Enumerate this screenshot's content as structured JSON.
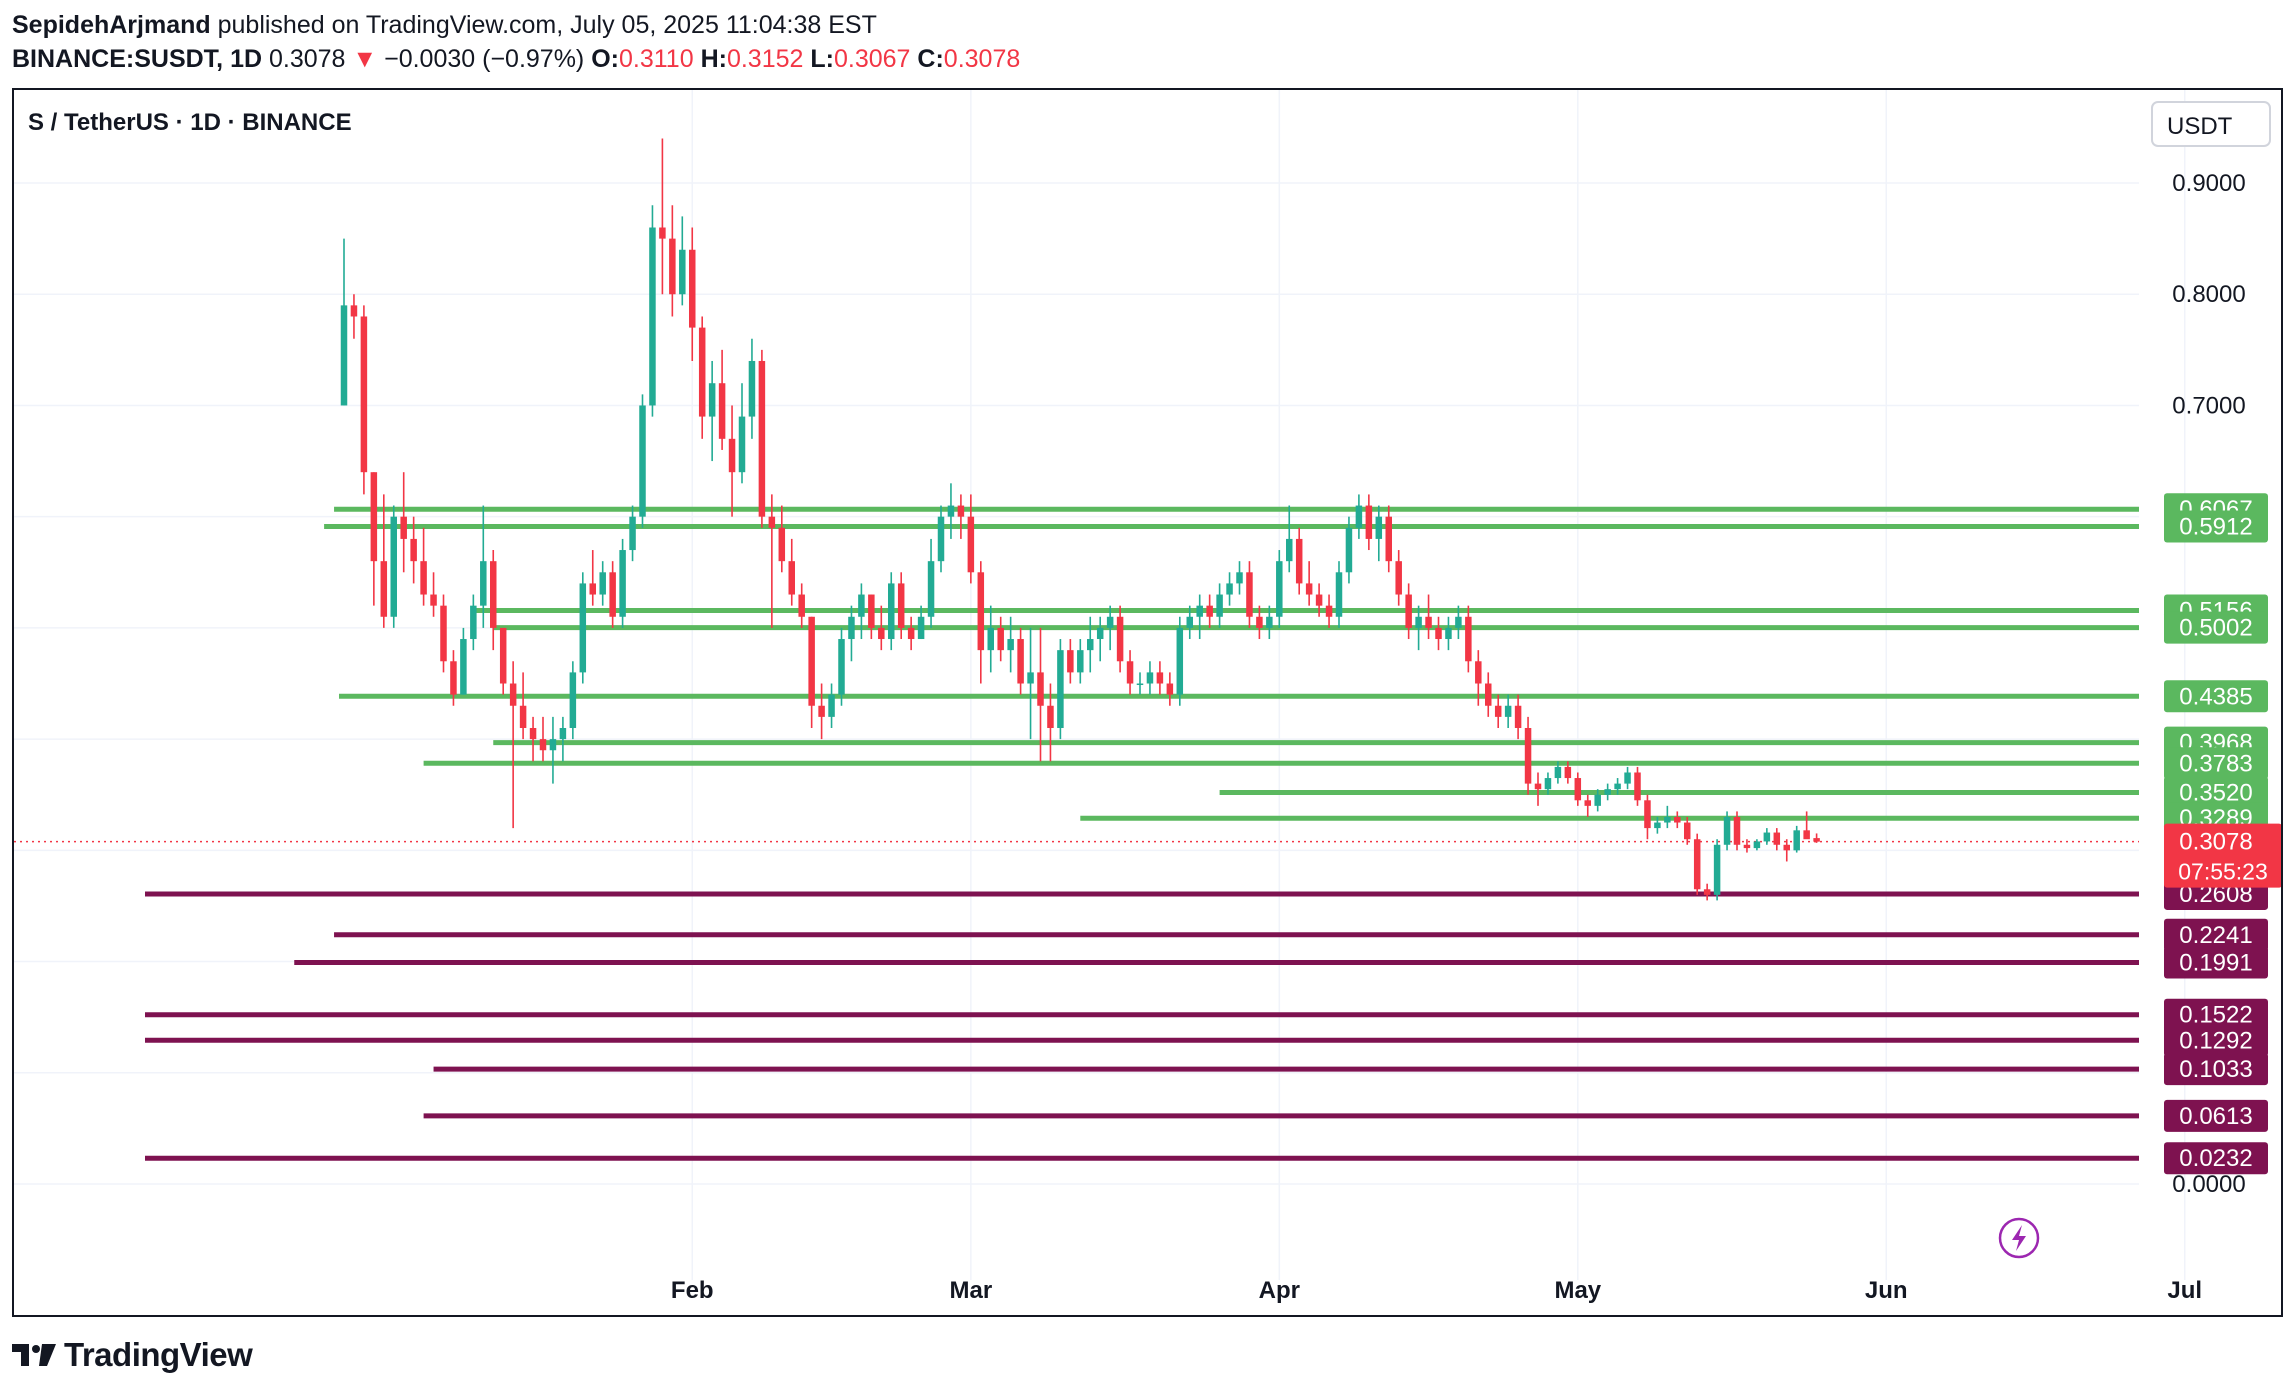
{
  "header": {
    "author": "SepidehArjmand",
    "published_text": "published on TradingView.com, July 05, 2025 11:04:38 EST",
    "symbol": "BINANCE:SUSDT, 1D",
    "last": "0.3078",
    "arrow": "▼",
    "change": "−0.0030 (−0.97%)",
    "o_label": "O:",
    "o_value": "0.3110",
    "h_label": "H:",
    "h_value": "0.3152",
    "l_label": "L:",
    "l_value": "0.3067",
    "c_label": "C:",
    "c_value": "0.3078"
  },
  "chart_title": "S / TetherUS · 1D · BINANCE",
  "currency_button": "USDT",
  "countdown": "07:55:23",
  "footer": {
    "brand": "TradingView"
  },
  "colors": {
    "up": "#22ab94",
    "down": "#f23645",
    "resistance": "#5bb85f",
    "support": "#7e1250",
    "last_price": "#f23645",
    "grid": "#f0f3fa"
  },
  "chart_data": {
    "type": "candlestick",
    "title": "S / TetherUS · 1D · BINANCE",
    "y_axis": {
      "min": 0.0,
      "max": 0.9,
      "ticks": [
        "0.0000",
        "0.7000",
        "0.8000",
        "0.9000"
      ]
    },
    "x_axis": {
      "months": [
        {
          "label": "Feb",
          "idx": 35
        },
        {
          "label": "Mar",
          "idx": 63
        },
        {
          "label": "Apr",
          "idx": 94
        },
        {
          "label": "May",
          "idx": 124
        },
        {
          "label": "Jun",
          "idx": 155
        },
        {
          "label": "Jul",
          "idx": 185
        }
      ]
    },
    "last_price": 0.3078,
    "resistance_levels": [
      {
        "label": "0.6067",
        "value": 0.6067,
        "from_idx": -1
      },
      {
        "label": "0.5912",
        "value": 0.5912,
        "from_idx": -2
      },
      {
        "label": "0.5156",
        "value": 0.5156,
        "from_idx": 13
      },
      {
        "label": "0.5002",
        "value": 0.5002,
        "from_idx": 15
      },
      {
        "label": "0.4385",
        "value": 0.4385,
        "from_idx": -0.5
      },
      {
        "label": "0.3968",
        "value": 0.3968,
        "from_idx": 15
      },
      {
        "label": "0.3783",
        "value": 0.3783,
        "from_idx": 8
      },
      {
        "label": "0.3520",
        "value": 0.352,
        "from_idx": 88
      },
      {
        "label": "0.3289",
        "value": 0.3289,
        "from_idx": 74
      }
    ],
    "support_levels": [
      {
        "label": "0.2608",
        "value": 0.2608,
        "from_idx": -20
      },
      {
        "label": "0.2241",
        "value": 0.2241,
        "from_idx": -1
      },
      {
        "label": "0.1991",
        "value": 0.1991,
        "from_idx": -5
      },
      {
        "label": "0.1522",
        "value": 0.1522,
        "from_idx": -20
      },
      {
        "label": "0.1292",
        "value": 0.1292,
        "from_idx": -20
      },
      {
        "label": "0.1033",
        "value": 0.1033,
        "from_idx": 9
      },
      {
        "label": "0.0613",
        "value": 0.0613,
        "from_idx": 8
      },
      {
        "label": "0.0232",
        "value": 0.0232,
        "from_idx": -20
      }
    ],
    "candles": [
      [
        0.7,
        0.85,
        0.7,
        0.79
      ],
      [
        0.79,
        0.8,
        0.76,
        0.78
      ],
      [
        0.78,
        0.79,
        0.62,
        0.64
      ],
      [
        0.64,
        0.64,
        0.52,
        0.56
      ],
      [
        0.56,
        0.62,
        0.5,
        0.51
      ],
      [
        0.51,
        0.61,
        0.5,
        0.6
      ],
      [
        0.6,
        0.64,
        0.55,
        0.58
      ],
      [
        0.58,
        0.6,
        0.54,
        0.56
      ],
      [
        0.56,
        0.59,
        0.52,
        0.53
      ],
      [
        0.53,
        0.55,
        0.51,
        0.52
      ],
      [
        0.52,
        0.53,
        0.46,
        0.47
      ],
      [
        0.47,
        0.48,
        0.43,
        0.44
      ],
      [
        0.44,
        0.5,
        0.44,
        0.49
      ],
      [
        0.49,
        0.53,
        0.48,
        0.52
      ],
      [
        0.52,
        0.61,
        0.5,
        0.56
      ],
      [
        0.56,
        0.57,
        0.48,
        0.5
      ],
      [
        0.5,
        0.5,
        0.44,
        0.45
      ],
      [
        0.45,
        0.47,
        0.32,
        0.43
      ],
      [
        0.43,
        0.46,
        0.4,
        0.41
      ],
      [
        0.41,
        0.42,
        0.38,
        0.4
      ],
      [
        0.4,
        0.42,
        0.38,
        0.39
      ],
      [
        0.39,
        0.42,
        0.36,
        0.4
      ],
      [
        0.4,
        0.42,
        0.38,
        0.41
      ],
      [
        0.41,
        0.47,
        0.4,
        0.46
      ],
      [
        0.46,
        0.55,
        0.45,
        0.54
      ],
      [
        0.54,
        0.57,
        0.52,
        0.53
      ],
      [
        0.53,
        0.56,
        0.52,
        0.55
      ],
      [
        0.55,
        0.56,
        0.5,
        0.51
      ],
      [
        0.51,
        0.58,
        0.5,
        0.57
      ],
      [
        0.57,
        0.61,
        0.56,
        0.6
      ],
      [
        0.6,
        0.71,
        0.59,
        0.7
      ],
      [
        0.7,
        0.88,
        0.69,
        0.86
      ],
      [
        0.86,
        0.94,
        0.8,
        0.85
      ],
      [
        0.85,
        0.88,
        0.78,
        0.8
      ],
      [
        0.8,
        0.87,
        0.79,
        0.84
      ],
      [
        0.84,
        0.86,
        0.74,
        0.77
      ],
      [
        0.77,
        0.78,
        0.67,
        0.69
      ],
      [
        0.69,
        0.74,
        0.65,
        0.72
      ],
      [
        0.72,
        0.75,
        0.66,
        0.67
      ],
      [
        0.67,
        0.7,
        0.6,
        0.64
      ],
      [
        0.64,
        0.72,
        0.63,
        0.69
      ],
      [
        0.69,
        0.76,
        0.67,
        0.74
      ],
      [
        0.74,
        0.75,
        0.59,
        0.6
      ],
      [
        0.6,
        0.62,
        0.5,
        0.59
      ],
      [
        0.59,
        0.61,
        0.55,
        0.56
      ],
      [
        0.56,
        0.58,
        0.52,
        0.53
      ],
      [
        0.53,
        0.54,
        0.5,
        0.51
      ],
      [
        0.51,
        0.51,
        0.41,
        0.43
      ],
      [
        0.43,
        0.45,
        0.4,
        0.42
      ],
      [
        0.42,
        0.45,
        0.41,
        0.44
      ],
      [
        0.44,
        0.5,
        0.43,
        0.49
      ],
      [
        0.49,
        0.52,
        0.47,
        0.51
      ],
      [
        0.51,
        0.54,
        0.49,
        0.53
      ],
      [
        0.53,
        0.53,
        0.49,
        0.5
      ],
      [
        0.5,
        0.52,
        0.48,
        0.49
      ],
      [
        0.49,
        0.55,
        0.48,
        0.54
      ],
      [
        0.54,
        0.55,
        0.49,
        0.5
      ],
      [
        0.5,
        0.51,
        0.48,
        0.49
      ],
      [
        0.49,
        0.52,
        0.49,
        0.51
      ],
      [
        0.51,
        0.58,
        0.5,
        0.56
      ],
      [
        0.56,
        0.61,
        0.55,
        0.6
      ],
      [
        0.6,
        0.63,
        0.58,
        0.61
      ],
      [
        0.61,
        0.62,
        0.58,
        0.6
      ],
      [
        0.6,
        0.62,
        0.54,
        0.55
      ],
      [
        0.55,
        0.56,
        0.45,
        0.48
      ],
      [
        0.48,
        0.52,
        0.46,
        0.5
      ],
      [
        0.5,
        0.51,
        0.47,
        0.48
      ],
      [
        0.48,
        0.51,
        0.46,
        0.49
      ],
      [
        0.49,
        0.5,
        0.44,
        0.45
      ],
      [
        0.45,
        0.5,
        0.4,
        0.46
      ],
      [
        0.46,
        0.5,
        0.38,
        0.43
      ],
      [
        0.43,
        0.45,
        0.38,
        0.41
      ],
      [
        0.41,
        0.49,
        0.4,
        0.48
      ],
      [
        0.48,
        0.49,
        0.45,
        0.46
      ],
      [
        0.46,
        0.49,
        0.45,
        0.48
      ],
      [
        0.48,
        0.51,
        0.46,
        0.49
      ],
      [
        0.49,
        0.51,
        0.47,
        0.5
      ],
      [
        0.5,
        0.52,
        0.48,
        0.51
      ],
      [
        0.51,
        0.52,
        0.46,
        0.47
      ],
      [
        0.47,
        0.48,
        0.44,
        0.45
      ],
      [
        0.45,
        0.46,
        0.44,
        0.45
      ],
      [
        0.45,
        0.47,
        0.44,
        0.46
      ],
      [
        0.46,
        0.47,
        0.44,
        0.45
      ],
      [
        0.45,
        0.46,
        0.43,
        0.44
      ],
      [
        0.44,
        0.51,
        0.43,
        0.5
      ],
      [
        0.5,
        0.52,
        0.49,
        0.51
      ],
      [
        0.51,
        0.53,
        0.49,
        0.52
      ],
      [
        0.52,
        0.53,
        0.5,
        0.51
      ],
      [
        0.51,
        0.54,
        0.5,
        0.53
      ],
      [
        0.53,
        0.55,
        0.52,
        0.54
      ],
      [
        0.54,
        0.56,
        0.53,
        0.55
      ],
      [
        0.55,
        0.56,
        0.5,
        0.51
      ],
      [
        0.51,
        0.52,
        0.49,
        0.5
      ],
      [
        0.5,
        0.52,
        0.49,
        0.51
      ],
      [
        0.51,
        0.57,
        0.5,
        0.56
      ],
      [
        0.56,
        0.61,
        0.55,
        0.58
      ],
      [
        0.58,
        0.59,
        0.53,
        0.54
      ],
      [
        0.54,
        0.56,
        0.52,
        0.53
      ],
      [
        0.53,
        0.54,
        0.51,
        0.52
      ],
      [
        0.52,
        0.53,
        0.5,
        0.51
      ],
      [
        0.51,
        0.56,
        0.5,
        0.55
      ],
      [
        0.55,
        0.6,
        0.54,
        0.59
      ],
      [
        0.59,
        0.62,
        0.58,
        0.61
      ],
      [
        0.61,
        0.62,
        0.57,
        0.58
      ],
      [
        0.58,
        0.61,
        0.56,
        0.6
      ],
      [
        0.6,
        0.61,
        0.55,
        0.56
      ],
      [
        0.56,
        0.57,
        0.52,
        0.53
      ],
      [
        0.53,
        0.54,
        0.49,
        0.5
      ],
      [
        0.5,
        0.52,
        0.48,
        0.51
      ],
      [
        0.51,
        0.53,
        0.49,
        0.5
      ],
      [
        0.5,
        0.51,
        0.48,
        0.49
      ],
      [
        0.49,
        0.51,
        0.48,
        0.5
      ],
      [
        0.5,
        0.52,
        0.49,
        0.51
      ],
      [
        0.51,
        0.52,
        0.46,
        0.47
      ],
      [
        0.47,
        0.48,
        0.43,
        0.45
      ],
      [
        0.45,
        0.46,
        0.42,
        0.43
      ],
      [
        0.43,
        0.44,
        0.41,
        0.42
      ],
      [
        0.42,
        0.44,
        0.41,
        0.43
      ],
      [
        0.43,
        0.44,
        0.4,
        0.41
      ],
      [
        0.41,
        0.42,
        0.35,
        0.36
      ],
      [
        0.36,
        0.37,
        0.34,
        0.355
      ],
      [
        0.355,
        0.37,
        0.35,
        0.365
      ],
      [
        0.365,
        0.38,
        0.36,
        0.375
      ],
      [
        0.375,
        0.38,
        0.36,
        0.365
      ],
      [
        0.365,
        0.37,
        0.34,
        0.345
      ],
      [
        0.345,
        0.35,
        0.33,
        0.34
      ],
      [
        0.34,
        0.355,
        0.335,
        0.35
      ],
      [
        0.35,
        0.36,
        0.345,
        0.355
      ],
      [
        0.355,
        0.365,
        0.35,
        0.36
      ],
      [
        0.36,
        0.375,
        0.355,
        0.37
      ],
      [
        0.37,
        0.375,
        0.34,
        0.345
      ],
      [
        0.345,
        0.35,
        0.31,
        0.32
      ],
      [
        0.32,
        0.33,
        0.315,
        0.325
      ],
      [
        0.325,
        0.34,
        0.32,
        0.33
      ],
      [
        0.33,
        0.335,
        0.32,
        0.325
      ],
      [
        0.325,
        0.33,
        0.305,
        0.31
      ],
      [
        0.31,
        0.315,
        0.26,
        0.265
      ],
      [
        0.265,
        0.27,
        0.255,
        0.26
      ],
      [
        0.26,
        0.31,
        0.255,
        0.305
      ],
      [
        0.305,
        0.335,
        0.3,
        0.33
      ],
      [
        0.33,
        0.335,
        0.3,
        0.305
      ],
      [
        0.305,
        0.31,
        0.298,
        0.302
      ],
      [
        0.302,
        0.31,
        0.3,
        0.308
      ],
      [
        0.308,
        0.32,
        0.305,
        0.316
      ],
      [
        0.316,
        0.32,
        0.3,
        0.305
      ],
      [
        0.305,
        0.31,
        0.29,
        0.3
      ],
      [
        0.3,
        0.322,
        0.298,
        0.318
      ],
      [
        0.318,
        0.335,
        0.315,
        0.31
      ],
      [
        0.311,
        0.3152,
        0.3067,
        0.3078
      ]
    ]
  }
}
